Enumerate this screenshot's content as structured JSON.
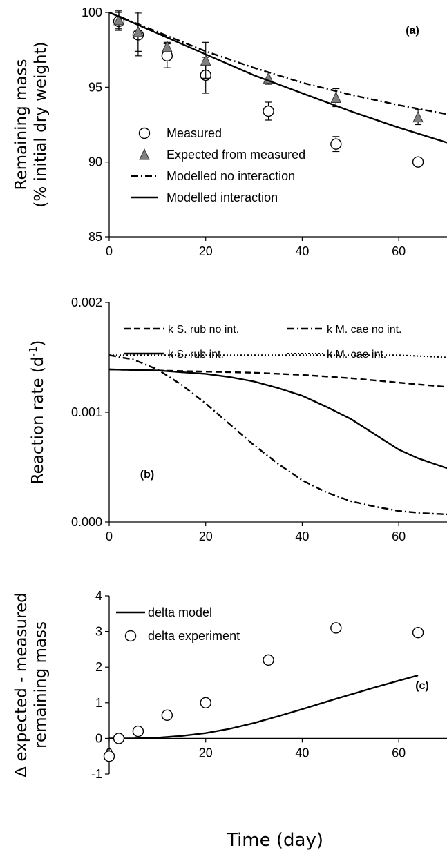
{
  "colors": {
    "line": "#000000",
    "marker_fill_triangle": "#7f7f7f",
    "marker_fill_circle": "#ffffff"
  },
  "figure": {
    "xtitle": "Time (day)"
  },
  "chart_data": [
    {
      "panel": "a",
      "type": "line",
      "panel_label": "(a)",
      "ylabel_lines": [
        "Remaining mass",
        "(% initial dry weight)"
      ],
      "xlim": [
        0,
        70
      ],
      "ylim": [
        85,
        100
      ],
      "xticks": [
        "0",
        "20",
        "40",
        "60"
      ],
      "yticks": [
        "85",
        "90",
        "95",
        "100"
      ],
      "grid": false,
      "legend_position": "bottom-left",
      "series": [
        {
          "name": "Measured",
          "style": "circle",
          "x": [
            2,
            6,
            12,
            20,
            33,
            47,
            64
          ],
          "y": [
            99.4,
            98.5,
            97.1,
            95.8,
            93.4,
            91.2,
            90.0
          ],
          "err": [
            0.6,
            1.4,
            0.8,
            1.2,
            0.6,
            0.5,
            0.0
          ]
        },
        {
          "name": "Expected from measured",
          "style": "triangle",
          "x": [
            2,
            6,
            12,
            20,
            33,
            47,
            64
          ],
          "y": [
            99.5,
            98.7,
            97.7,
            96.8,
            95.6,
            94.3,
            93.0
          ],
          "err": [
            0.6,
            1.3,
            0.3,
            1.2,
            0.4,
            0.6,
            0.5
          ]
        },
        {
          "name": "Modelled no interaction",
          "style": "dashdot",
          "x": [
            0,
            10,
            20,
            30,
            40,
            50,
            60,
            70
          ],
          "y": [
            100.0,
            98.7,
            97.4,
            96.3,
            95.3,
            94.5,
            93.8,
            93.2
          ]
        },
        {
          "name": "Modelled interaction",
          "style": "solid",
          "x": [
            0,
            10,
            20,
            30,
            40,
            50,
            60,
            70
          ],
          "y": [
            100.0,
            98.6,
            97.2,
            95.8,
            94.6,
            93.4,
            92.3,
            91.3
          ]
        }
      ]
    },
    {
      "panel": "b",
      "type": "line",
      "panel_label": "(b)",
      "ylabel": "Reaction rate (d",
      "ylabel_sup": "-1",
      "ylabel_end": ")",
      "xlim": [
        0,
        70
      ],
      "ylim": [
        0,
        0.002
      ],
      "xticks": [
        "0",
        "20",
        "40",
        "60"
      ],
      "yticks": [
        "0.000",
        "0.001",
        "0.002"
      ],
      "grid": false,
      "legend_position": "top",
      "series": [
        {
          "name": "k S. rub no int.",
          "style": "dashed",
          "x": [
            0,
            10,
            20,
            30,
            40,
            50,
            60,
            70
          ],
          "y": [
            0.00139,
            0.00138,
            0.00137,
            0.00136,
            0.00134,
            0.00131,
            0.00127,
            0.00123
          ]
        },
        {
          "name": "k M. cae no int.",
          "style": "dashdot",
          "x": [
            0,
            5,
            10,
            15,
            20,
            25,
            30,
            35,
            40,
            45,
            50,
            55,
            60,
            65,
            70
          ],
          "y": [
            0.00152,
            0.00148,
            0.00139,
            0.00125,
            0.00108,
            0.00089,
            0.0007,
            0.00053,
            0.00038,
            0.00027,
            0.00019,
            0.00014,
            0.0001,
            8e-05,
            7e-05
          ]
        },
        {
          "name": "k S. rub int.",
          "style": "solid",
          "x": [
            0,
            10,
            20,
            25,
            30,
            35,
            40,
            45,
            50,
            55,
            60,
            64,
            70
          ],
          "y": [
            0.00139,
            0.00138,
            0.00135,
            0.00132,
            0.00128,
            0.00122,
            0.00115,
            0.00105,
            0.00094,
            0.0008,
            0.00066,
            0.00058,
            0.00049
          ]
        },
        {
          "name": "k M. cae int.",
          "style": "dotted",
          "x": [
            0,
            20,
            40,
            60,
            70
          ],
          "y": [
            0.00152,
            0.00152,
            0.00152,
            0.00152,
            0.0015
          ]
        }
      ]
    },
    {
      "panel": "c",
      "type": "line",
      "panel_label": "(c)",
      "ylabel_lines": [
        "Δ expected - measured",
        "remaining mass"
      ],
      "xlim": [
        0,
        70
      ],
      "ylim": [
        -1,
        4
      ],
      "xticks": [
        "0",
        "20",
        "40",
        "60"
      ],
      "yticks": [
        "-1",
        "0",
        "1",
        "2",
        "3",
        "4"
      ],
      "grid": false,
      "legend_position": "top-left",
      "series": [
        {
          "name": "delta model",
          "style": "solid",
          "x": [
            0,
            5,
            10,
            15,
            20,
            25,
            30,
            35,
            40,
            45,
            50,
            55,
            60,
            64
          ],
          "y": [
            0,
            0,
            0.02,
            0.07,
            0.15,
            0.27,
            0.43,
            0.62,
            0.82,
            1.03,
            1.23,
            1.43,
            1.62,
            1.77
          ]
        },
        {
          "name": "delta experiment",
          "style": "circle",
          "x": [
            0,
            2,
            6,
            12,
            20,
            33,
            47,
            64
          ],
          "y": [
            -0.5,
            0,
            0.2,
            0.65,
            1.0,
            2.2,
            3.1,
            2.97
          ]
        }
      ]
    }
  ]
}
